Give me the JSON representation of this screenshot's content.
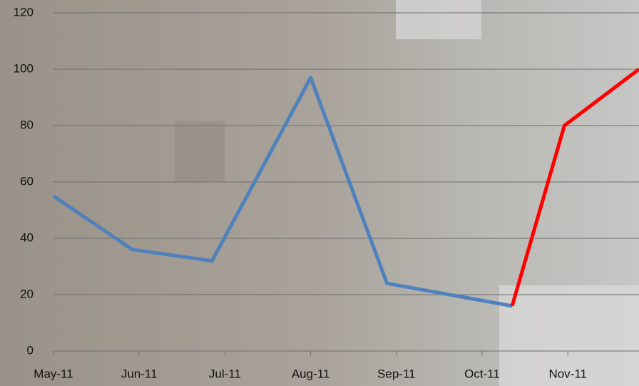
{
  "chart_data": {
    "type": "line",
    "x": [
      0,
      0.92,
      1.85,
      3,
      3.89,
      5.35,
      5.96,
      6.83
    ],
    "series": [
      {
        "color": "#4f81bd",
        "values": [
          55,
          36,
          32,
          97,
          24,
          16,
          null,
          null
        ]
      },
      {
        "color": "#ff0000",
        "values": [
          null,
          null,
          null,
          null,
          null,
          16,
          80,
          100
        ]
      }
    ],
    "xlim": [
      0,
      6.83
    ],
    "xticks": [
      {
        "value": 0,
        "label": "May-11"
      },
      {
        "value": 1,
        "label": "Jun-11"
      },
      {
        "value": 2,
        "label": "Jul-11"
      },
      {
        "value": 3,
        "label": "Aug-11"
      },
      {
        "value": 4,
        "label": "Sep-11"
      },
      {
        "value": 5,
        "label": "Oct-11"
      },
      {
        "value": 6,
        "label": "Nov-11"
      }
    ],
    "ylim": [
      0,
      120
    ],
    "yticks": [
      0,
      20,
      40,
      60,
      80,
      100,
      120
    ],
    "grid": true
  }
}
